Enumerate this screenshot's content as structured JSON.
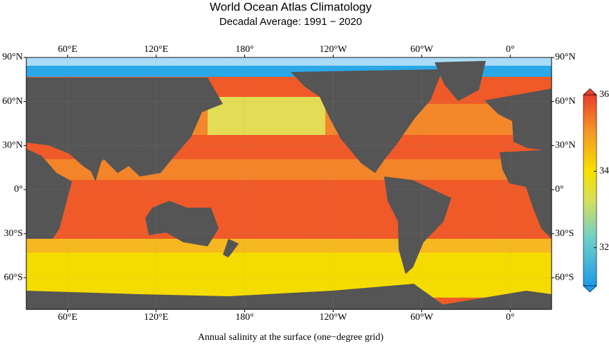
{
  "title": "World Ocean Atlas Climatology",
  "subtitle": "Decadal Average: 1991 − 2020",
  "caption": "Annual salinity at the surface (one−degree grid)",
  "map": {
    "lon_ticks": [
      {
        "value": 60,
        "label": "60°E"
      },
      {
        "value": 120,
        "label": "120°E"
      },
      {
        "value": 180,
        "label": "180°"
      },
      {
        "value": -120,
        "label": "120°W"
      },
      {
        "value": -60,
        "label": "60°W"
      },
      {
        "value": 0,
        "label": "0°"
      }
    ],
    "lat_ticks": [
      {
        "value": 90,
        "label": "90°N"
      },
      {
        "value": 60,
        "label": "60°N"
      },
      {
        "value": 30,
        "label": "30°N"
      },
      {
        "value": 0,
        "label": "0°"
      },
      {
        "value": -30,
        "label": "30°S"
      },
      {
        "value": -60,
        "label": "60°S"
      }
    ]
  },
  "colorbar": {
    "lim": [
      31,
      36
    ],
    "ticks": [
      32,
      34,
      36
    ]
  }
}
